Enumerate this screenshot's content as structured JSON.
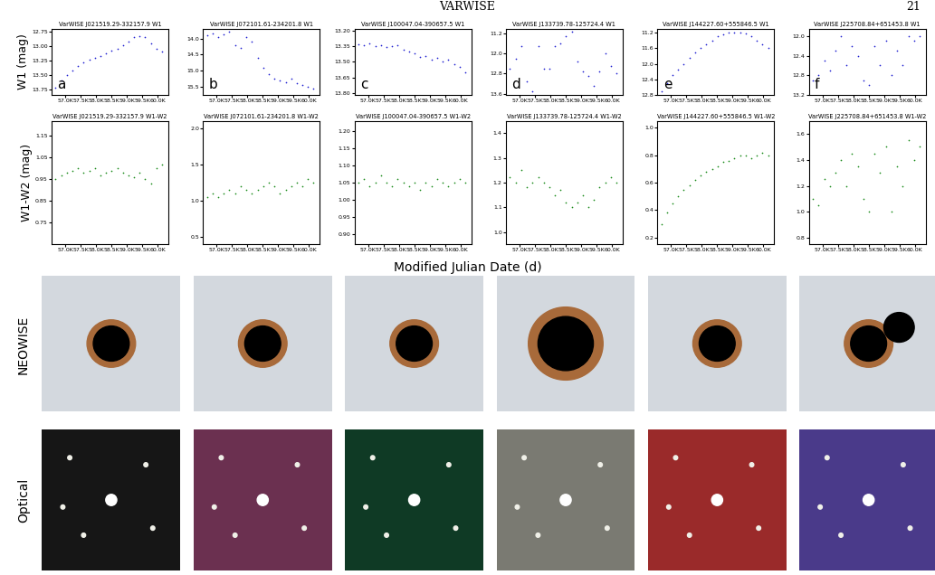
{
  "header": {
    "running_head": "VARWISE",
    "page": "21"
  },
  "x_axis": {
    "label": "Modified Julian Date (d)",
    "xlim": [
      56550,
      60350
    ],
    "xticks": [
      {
        "value": 57000,
        "label": "57.0K"
      },
      {
        "value": 57500,
        "label": "57.5K"
      },
      {
        "value": 58000,
        "label": "58.0K"
      },
      {
        "value": 58500,
        "label": "58.5K"
      },
      {
        "value": 59000,
        "label": "59.0K"
      },
      {
        "value": 59500,
        "label": "59.5K"
      },
      {
        "value": 60000,
        "label": "60.0K"
      }
    ]
  },
  "row_labels": [
    "NEOWISE",
    "Optical"
  ],
  "chart_data": [
    {
      "type": "scatter",
      "title": "VarWISE J021519.29-332157.9 W1",
      "panel": "a",
      "y_label": "W1 (mag)",
      "color": "#1f1fd0",
      "marker": "dot",
      "x": [
        56680,
        56870,
        57050,
        57230,
        57410,
        57600,
        57780,
        57960,
        58140,
        58330,
        58510,
        58690,
        58870,
        59060,
        59240,
        59420,
        59600,
        59790,
        59970,
        60150
      ],
      "values": [
        13.72,
        13.6,
        13.5,
        13.42,
        13.35,
        13.28,
        13.24,
        13.2,
        13.17,
        13.12,
        13.08,
        13.05,
        12.98,
        12.92,
        12.85,
        12.83,
        12.85,
        12.95,
        13.05,
        13.1
      ],
      "ylim": [
        13.85,
        12.7
      ],
      "yticks": [
        {
          "value": 12.75,
          "label": "12.75"
        },
        {
          "value": 13.0,
          "label": "13.00"
        },
        {
          "value": 13.25,
          "label": "13.25"
        },
        {
          "value": 13.5,
          "label": "13.50"
        },
        {
          "value": 13.75,
          "label": "13.75"
        }
      ]
    },
    {
      "type": "scatter",
      "title": "VarWISE J072101.61-234201.8 W1",
      "panel": "b",
      "color": "#1f1fd0",
      "marker": "dot",
      "x": [
        56680,
        56870,
        57050,
        57230,
        57410,
        57600,
        57780,
        57960,
        58140,
        58330,
        58510,
        58690,
        58870,
        59060,
        59240,
        59420,
        59600,
        59790,
        59970,
        60150
      ],
      "values": [
        13.9,
        13.85,
        13.95,
        13.88,
        13.8,
        14.2,
        14.3,
        13.95,
        14.1,
        14.6,
        14.9,
        15.1,
        15.25,
        15.3,
        15.35,
        15.25,
        15.4,
        15.45,
        15.5,
        15.55
      ],
      "ylim": [
        15.75,
        13.7
      ],
      "yticks": [
        14.0,
        14.5,
        15.0,
        15.5
      ]
    },
    {
      "type": "scatter",
      "title": "VarWISE J100047.04-390657.5 W1",
      "panel": "c",
      "color": "#1f1fd0",
      "marker": "dot",
      "x": [
        56680,
        56870,
        57050,
        57230,
        57410,
        57600,
        57780,
        57960,
        58140,
        58330,
        58510,
        58690,
        58870,
        59060,
        59240,
        59420,
        59600,
        59790,
        59970,
        60150
      ],
      "values": [
        13.33,
        13.34,
        13.32,
        13.35,
        13.34,
        13.36,
        13.35,
        13.34,
        13.38,
        13.4,
        13.42,
        13.45,
        13.44,
        13.48,
        13.46,
        13.5,
        13.48,
        13.52,
        13.55,
        13.6
      ],
      "ylim": [
        13.82,
        13.18
      ],
      "yticks": [
        {
          "value": 13.2,
          "label": "13.20"
        },
        {
          "value": 13.35,
          "label": "13.35"
        },
        {
          "value": 13.5,
          "label": "13.50"
        },
        {
          "value": 13.65,
          "label": "13.65"
        },
        {
          "value": 13.8,
          "label": "13.80"
        }
      ]
    },
    {
      "type": "scatter",
      "title": "VarWISE J133739.78-125724.4 W1",
      "panel": "d",
      "color": "#1f1fd0",
      "marker": "dot",
      "x": [
        56680,
        56870,
        57050,
        57230,
        57410,
        57600,
        57780,
        57960,
        58140,
        58330,
        58510,
        58690,
        58870,
        59060,
        59240,
        59420,
        59600,
        59790,
        59970,
        60150
      ],
      "values": [
        12.6,
        12.2,
        11.7,
        13.1,
        13.5,
        11.7,
        12.6,
        12.6,
        11.7,
        11.6,
        11.3,
        11.1,
        12.3,
        12.7,
        12.9,
        13.3,
        12.7,
        12.0,
        12.5,
        12.8
      ],
      "ylim": [
        13.65,
        11.0
      ],
      "yticks": [
        11.2,
        12.0,
        12.8,
        13.6
      ]
    },
    {
      "type": "scatter",
      "title": "VarWISE J144227.60+555846.5 W1",
      "panel": "e",
      "color": "#1f1fd0",
      "marker": "dot",
      "x": [
        56680,
        56870,
        57050,
        57230,
        57410,
        57600,
        57780,
        57960,
        58140,
        58330,
        58510,
        58690,
        58870,
        59060,
        59240,
        59420,
        59600,
        59790,
        59970,
        60150
      ],
      "values": [
        12.7,
        12.5,
        12.3,
        12.15,
        12.0,
        11.85,
        11.72,
        11.6,
        11.5,
        11.4,
        11.3,
        11.25,
        11.2,
        11.2,
        11.2,
        11.22,
        11.3,
        11.4,
        11.5,
        11.6
      ],
      "ylim": [
        12.8,
        11.1
      ],
      "yticks": [
        11.2,
        11.6,
        12.0,
        12.4,
        12.8
      ]
    },
    {
      "type": "scatter",
      "title": "VarWISE J225708.84+651453.8 W1",
      "panel": "f",
      "color": "#1f1fd0",
      "marker": "dot",
      "x": [
        56680,
        56870,
        57050,
        57230,
        57410,
        57600,
        57780,
        57960,
        58140,
        58330,
        58510,
        58690,
        58870,
        59060,
        59240,
        59420,
        59600,
        59790,
        59970,
        60150
      ],
      "values": [
        12.9,
        12.8,
        12.5,
        12.7,
        12.3,
        12.0,
        12.6,
        12.2,
        12.4,
        12.9,
        13.0,
        12.2,
        12.6,
        12.1,
        12.8,
        12.3,
        12.6,
        12.0,
        12.1,
        12.0
      ],
      "ylim": [
        13.2,
        11.85
      ],
      "yticks": [
        12.0,
        12.4,
        12.8,
        13.2
      ]
    },
    {
      "type": "scatter",
      "title": "VarWISE J021519.29-332157.9 W1-W2",
      "y_label": "W1-W2 (mag)",
      "color": "#1a8a1a",
      "marker": "dot",
      "x": [
        56680,
        56870,
        57050,
        57230,
        57410,
        57600,
        57780,
        57960,
        58140,
        58330,
        58510,
        58690,
        58870,
        59060,
        59240,
        59420,
        59600,
        59790,
        59970,
        60150
      ],
      "values": [
        0.95,
        0.97,
        0.98,
        0.99,
        1.0,
        0.98,
        0.99,
        1.0,
        0.97,
        0.98,
        0.99,
        1.0,
        0.98,
        0.97,
        0.96,
        0.98,
        0.95,
        0.93,
        1.0,
        1.02
      ],
      "ylim": [
        0.65,
        1.22
      ],
      "yticks": [
        0.75,
        0.85,
        0.95,
        1.05,
        1.15
      ]
    },
    {
      "type": "scatter",
      "title": "VarWISE J072101.61-234201.8 W1-W2",
      "color": "#1a8a1a",
      "marker": "dot",
      "x": [
        56680,
        56870,
        57050,
        57230,
        57410,
        57600,
        57780,
        57960,
        58140,
        58330,
        58510,
        58690,
        58870,
        59060,
        59240,
        59420,
        59600,
        59790,
        59970,
        60150
      ],
      "values": [
        1.05,
        1.1,
        1.05,
        1.1,
        1.15,
        1.1,
        1.2,
        1.15,
        1.1,
        1.15,
        1.2,
        1.25,
        1.2,
        1.1,
        1.15,
        1.2,
        1.25,
        1.2,
        1.3,
        1.25
      ],
      "ylim": [
        0.4,
        2.1
      ],
      "yticks": [
        0.5,
        1.0,
        1.5,
        2.0
      ]
    },
    {
      "type": "scatter",
      "title": "VarWISE J100047.04-390657.5 W1-W2",
      "color": "#1a8a1a",
      "marker": "dot",
      "x": [
        56680,
        56870,
        57050,
        57230,
        57410,
        57600,
        57780,
        57960,
        58140,
        58330,
        58510,
        58690,
        58870,
        59060,
        59240,
        59420,
        59600,
        59790,
        59970,
        60150
      ],
      "values": [
        1.05,
        1.06,
        1.04,
        1.05,
        1.07,
        1.05,
        1.04,
        1.06,
        1.05,
        1.04,
        1.05,
        1.03,
        1.05,
        1.04,
        1.06,
        1.05,
        1.04,
        1.05,
        1.06,
        1.05
      ],
      "ylim": [
        0.87,
        1.23
      ],
      "yticks": [
        {
          "value": 0.9,
          "label": "0.90"
        },
        {
          "value": 0.95,
          "label": "0.95"
        },
        {
          "value": 1.0,
          "label": "1.00"
        },
        {
          "value": 1.05,
          "label": "1.05"
        },
        {
          "value": 1.1,
          "label": "1.10"
        },
        {
          "value": 1.15,
          "label": "1.15"
        },
        {
          "value": 1.2,
          "label": "1.20"
        }
      ]
    },
    {
      "type": "scatter",
      "title": "VarWISE J133739.78-125724.4 W1-W2",
      "color": "#1a8a1a",
      "marker": "dot",
      "x": [
        56680,
        56870,
        57050,
        57230,
        57410,
        57600,
        57780,
        57960,
        58140,
        58330,
        58510,
        58690,
        58870,
        59060,
        59240,
        59420,
        59600,
        59790,
        59970,
        60150
      ],
      "values": [
        1.22,
        1.2,
        1.25,
        1.18,
        1.2,
        1.22,
        1.2,
        1.18,
        1.15,
        1.17,
        1.12,
        1.1,
        1.12,
        1.15,
        1.1,
        1.13,
        1.18,
        1.2,
        1.22,
        1.2
      ],
      "ylim": [
        0.95,
        1.45
      ],
      "yticks": [
        1.0,
        1.1,
        1.2,
        1.3,
        1.4
      ]
    },
    {
      "type": "scatter",
      "title": "VarWISE J144227.60+555846.5 W1-W2",
      "color": "#1a8a1a",
      "marker": "dot",
      "x": [
        56680,
        56870,
        57050,
        57230,
        57410,
        57600,
        57780,
        57960,
        58140,
        58330,
        58510,
        58690,
        58870,
        59060,
        59240,
        59420,
        59600,
        59790,
        59970,
        60150
      ],
      "values": [
        0.3,
        0.38,
        0.45,
        0.5,
        0.55,
        0.58,
        0.62,
        0.65,
        0.68,
        0.7,
        0.72,
        0.75,
        0.76,
        0.78,
        0.8,
        0.8,
        0.78,
        0.8,
        0.82,
        0.8
      ],
      "ylim": [
        0.15,
        1.05
      ],
      "yticks": [
        0.2,
        0.4,
        0.6,
        0.8,
        1.0
      ]
    },
    {
      "type": "scatter",
      "title": "VarWISE J225708.84+651453.8 W1-W2",
      "color": "#1a8a1a",
      "marker": "dot",
      "x": [
        56680,
        56870,
        57050,
        57230,
        57410,
        57600,
        57780,
        57960,
        58140,
        58330,
        58510,
        58690,
        58870,
        59060,
        59240,
        59420,
        59600,
        59790,
        59970,
        60150
      ],
      "values": [
        1.1,
        1.05,
        1.25,
        1.2,
        1.3,
        1.4,
        1.2,
        1.45,
        1.35,
        1.1,
        1.0,
        1.45,
        1.3,
        1.5,
        1.0,
        1.35,
        1.2,
        1.55,
        1.4,
        1.5
      ],
      "ylim": [
        0.75,
        1.7
      ],
      "yticks": [
        0.8,
        1.0,
        1.2,
        1.4,
        1.6
      ]
    }
  ]
}
